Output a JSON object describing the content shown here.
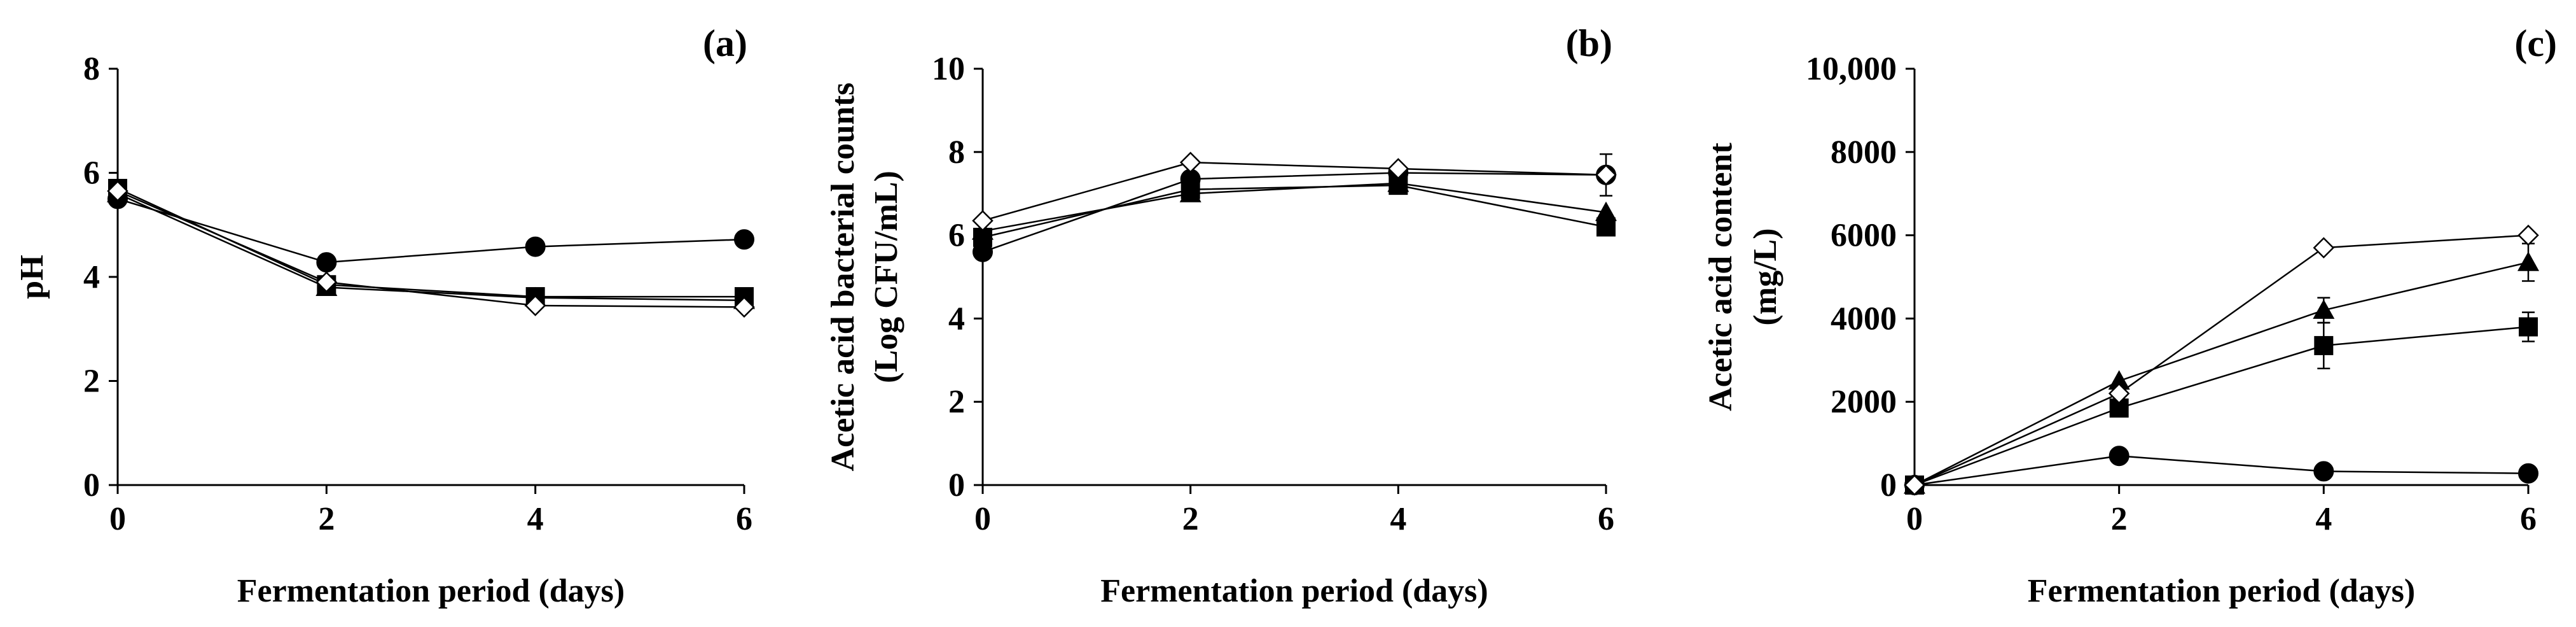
{
  "chart_data": [
    {
      "type": "line",
      "panel_label": "(a)",
      "title": "",
      "xlabel": "Fermentation period (days)",
      "ylabel": [
        "pH"
      ],
      "x": [
        0,
        2,
        4,
        6
      ],
      "xlim": [
        0,
        6
      ],
      "xticks": [
        "0",
        "2",
        "4",
        "6"
      ],
      "ylim": [
        0,
        8
      ],
      "yticks": [
        "0",
        "2",
        "4",
        "6",
        "8"
      ],
      "grid": false,
      "series": [
        {
          "name": "circle",
          "marker": "circle",
          "values": [
            5.5,
            4.28,
            4.58,
            4.72
          ],
          "errors": [
            0,
            0,
            0,
            0
          ]
        },
        {
          "name": "square",
          "marker": "square",
          "values": [
            5.7,
            3.85,
            3.62,
            3.62
          ],
          "errors": [
            0,
            0,
            0,
            0
          ]
        },
        {
          "name": "triangle",
          "marker": "triangle",
          "values": [
            5.6,
            3.8,
            3.6,
            3.55
          ],
          "errors": [
            0,
            0,
            0,
            0
          ]
        },
        {
          "name": "diamond",
          "marker": "diamond",
          "values": [
            5.65,
            3.9,
            3.45,
            3.42
          ],
          "errors": [
            0,
            0,
            0,
            0
          ]
        }
      ]
    },
    {
      "type": "line",
      "panel_label": "(b)",
      "title": "",
      "xlabel": "Fermentation period (days)",
      "ylabel": [
        "Acetic acid bacterial counts",
        "(Log CFU/mL)"
      ],
      "x": [
        0,
        2,
        4,
        6
      ],
      "xlim": [
        0,
        6
      ],
      "xticks": [
        "0",
        "2",
        "4",
        "6"
      ],
      "ylim": [
        0,
        10
      ],
      "yticks": [
        "0",
        "2",
        "4",
        "6",
        "8",
        "10"
      ],
      "grid": false,
      "series": [
        {
          "name": "circle",
          "marker": "circle",
          "values": [
            5.6,
            7.35,
            7.5,
            7.45
          ],
          "errors": [
            0,
            0,
            0,
            0.5
          ]
        },
        {
          "name": "square",
          "marker": "square",
          "values": [
            5.95,
            7.1,
            7.2,
            6.2
          ],
          "errors": [
            0,
            0,
            0,
            0
          ]
        },
        {
          "name": "triangle",
          "marker": "triangle",
          "values": [
            6.1,
            7.0,
            7.25,
            6.55
          ],
          "errors": [
            0,
            0,
            0,
            0
          ]
        },
        {
          "name": "diamond",
          "marker": "diamond",
          "values": [
            6.35,
            7.75,
            7.6,
            7.45
          ],
          "errors": [
            0,
            0,
            0,
            0
          ]
        }
      ]
    },
    {
      "type": "line",
      "panel_label": "(c)",
      "title": "",
      "xlabel": "Fermentation period (days)",
      "ylabel": [
        "Acetic acid content",
        "(mg/L)"
      ],
      "x": [
        0,
        2,
        4,
        6
      ],
      "xlim": [
        0,
        6
      ],
      "xticks": [
        "0",
        "2",
        "4",
        "6"
      ],
      "ylim": [
        0,
        10000
      ],
      "yticks": [
        "0",
        "2000",
        "4000",
        "6000",
        "8000",
        "10,000"
      ],
      "grid": false,
      "series": [
        {
          "name": "circle",
          "marker": "circle",
          "values": [
            0,
            700,
            330,
            280
          ],
          "errors": [
            0,
            0,
            0,
            0
          ]
        },
        {
          "name": "square",
          "marker": "square",
          "values": [
            0,
            1850,
            3350,
            3800
          ],
          "errors": [
            0,
            0,
            550,
            350
          ]
        },
        {
          "name": "triangle",
          "marker": "triangle",
          "values": [
            0,
            2500,
            4200,
            5350
          ],
          "errors": [
            0,
            0,
            300,
            450
          ]
        },
        {
          "name": "diamond",
          "marker": "diamond",
          "values": [
            0,
            2200,
            5700,
            6000
          ],
          "errors": [
            0,
            0,
            0,
            0
          ]
        }
      ]
    }
  ]
}
